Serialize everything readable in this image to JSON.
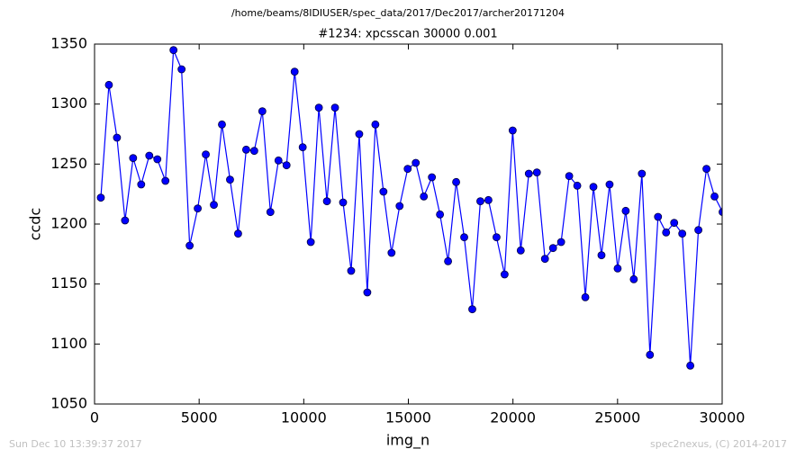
{
  "chart_data": {
    "type": "line",
    "header": "/home/beams/8IDIUSER/spec_data/2017/Dec2017/archer20171204",
    "title": "#1234: xpcsscan 30000 0.001",
    "x_label": "img_n",
    "y_label": "ccdc",
    "footer_left": "Sun Dec 10 13:39:37 2017",
    "footer_right": "spec2nexus, (C) 2014-2017",
    "xlim": [
      0,
      30000
    ],
    "ylim": [
      1050,
      1350
    ],
    "xticks": [
      0,
      5000,
      10000,
      15000,
      20000,
      25000,
      30000
    ],
    "yticks": [
      1050,
      1100,
      1150,
      1200,
      1250,
      1300,
      1350
    ],
    "x": [
      300,
      686,
      1072,
      1458,
      1844,
      2230,
      2616,
      3002,
      3388,
      3774,
      4160,
      4546,
      4932,
      5318,
      5704,
      6090,
      6476,
      6862,
      7248,
      7634,
      8020,
      8406,
      8792,
      9178,
      9564,
      9950,
      10336,
      10722,
      11108,
      11494,
      11880,
      12266,
      12652,
      13038,
      13424,
      13810,
      14196,
      14582,
      14968,
      15354,
      15740,
      16126,
      16512,
      16898,
      17284,
      17670,
      18056,
      18442,
      18828,
      19214,
      19600,
      19986,
      20372,
      20758,
      21144,
      21530,
      21916,
      22302,
      22688,
      23074,
      23460,
      23846,
      24232,
      24618,
      25004,
      25390,
      25776,
      26162,
      26548,
      26934,
      27320,
      27706,
      28092,
      28478,
      28864,
      29250,
      29636,
      30022
    ],
    "series": [
      {
        "color": "#0000ff",
        "values": [
          1222,
          1316,
          1272,
          1203,
          1255,
          1233,
          1257,
          1254,
          1236,
          1345,
          1329,
          1182,
          1213,
          1258,
          1216,
          1283,
          1237,
          1192,
          1262,
          1261,
          1294,
          1210,
          1253,
          1249,
          1327,
          1264,
          1185,
          1297,
          1219,
          1297,
          1218,
          1161,
          1275,
          1143,
          1283,
          1227,
          1176,
          1215,
          1246,
          1251,
          1223,
          1239,
          1208,
          1169,
          1235,
          1189,
          1129,
          1219,
          1220,
          1189,
          1158,
          1278,
          1178,
          1242,
          1243,
          1171,
          1180,
          1185,
          1240,
          1232,
          1139,
          1231,
          1174,
          1233,
          1163,
          1211,
          1154,
          1242,
          1091,
          1206,
          1193,
          1201,
          1192,
          1082,
          1195,
          1246,
          1223,
          1210
        ]
      }
    ]
  }
}
